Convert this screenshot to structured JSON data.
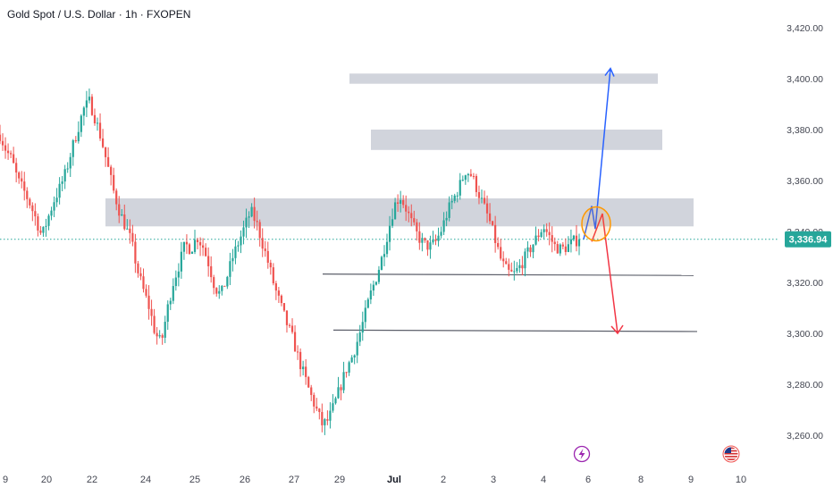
{
  "header": {
    "title": "Gold Spot / U.S. Dollar · 1h · FXOPEN"
  },
  "chart_data": {
    "type": "candlestick",
    "title": "Gold Spot / U.S. Dollar · 1h · FXOPEN",
    "y_axis": {
      "position": "right",
      "range": [
        3248,
        3424
      ],
      "ticks": [
        "3,260.00",
        "3,280.00",
        "3,300.00",
        "3,320.00",
        "3,340.00",
        "3,360.00",
        "3,380.00",
        "3,400.00",
        "3,420.00"
      ],
      "tick_values": [
        3260,
        3280,
        3300,
        3320,
        3340,
        3360,
        3380,
        3400,
        3420
      ]
    },
    "x_axis": {
      "ticks": [
        "9",
        "20",
        "22",
        "24",
        "25",
        "26",
        "27",
        "29",
        "Jul",
        "2",
        "3",
        "4",
        "6",
        "8",
        "9",
        "10"
      ],
      "tick_bold": [
        false,
        false,
        false,
        false,
        false,
        false,
        false,
        false,
        true,
        false,
        false,
        false,
        false,
        false,
        false,
        false
      ]
    },
    "current_price": {
      "label": "3,336.94",
      "value": 3336.94
    },
    "price_path": [
      3378,
      3372,
      3368,
      3360,
      3356,
      3351,
      3345,
      3338,
      3345,
      3352,
      3357,
      3363,
      3372,
      3380,
      3388,
      3391,
      3384,
      3376,
      3366,
      3356,
      3348,
      3342,
      3336,
      3325,
      3317,
      3310,
      3300,
      3296,
      3309,
      3320,
      3327,
      3335,
      3333,
      3338,
      3334,
      3327,
      3318,
      3315,
      3322,
      3330,
      3336,
      3342,
      3348,
      3343,
      3335,
      3327,
      3318,
      3311,
      3304,
      3298,
      3290,
      3283,
      3276,
      3270,
      3264,
      3266,
      3272,
      3279,
      3286,
      3291,
      3298,
      3306,
      3315,
      3322,
      3330,
      3340,
      3350,
      3354,
      3349,
      3343,
      3338,
      3335,
      3334,
      3336,
      3341,
      3348,
      3353,
      3358,
      3364,
      3362,
      3356,
      3350,
      3344,
      3336,
      3328,
      3324,
      3323,
      3326,
      3330,
      3334,
      3338,
      3342,
      3338,
      3334,
      3333,
      3334,
      3336,
      3336.94
    ],
    "zones": [
      {
        "from": 3398,
        "to": 3402
      },
      {
        "from": 3372,
        "to": 3380
      },
      {
        "from": 3342,
        "to": 3353
      }
    ],
    "levels": [
      3323,
      3301
    ],
    "projection": {
      "up": {
        "from": 3337,
        "to": 3404
      },
      "down": {
        "from": 3347,
        "to": 3300
      }
    },
    "colors": {
      "up": "#26a69a",
      "down": "#ef5350",
      "zone": "#d1d4dc",
      "line": "#5d606b",
      "price_line": "#26a69a",
      "up_arrow": "#2962ff",
      "down_arrow": "#f23645",
      "circle": "#ff9800",
      "text": "#131722",
      "axis_text": "#434651"
    },
    "icons": [
      "lightning-icon",
      "us-flag-icon"
    ]
  }
}
